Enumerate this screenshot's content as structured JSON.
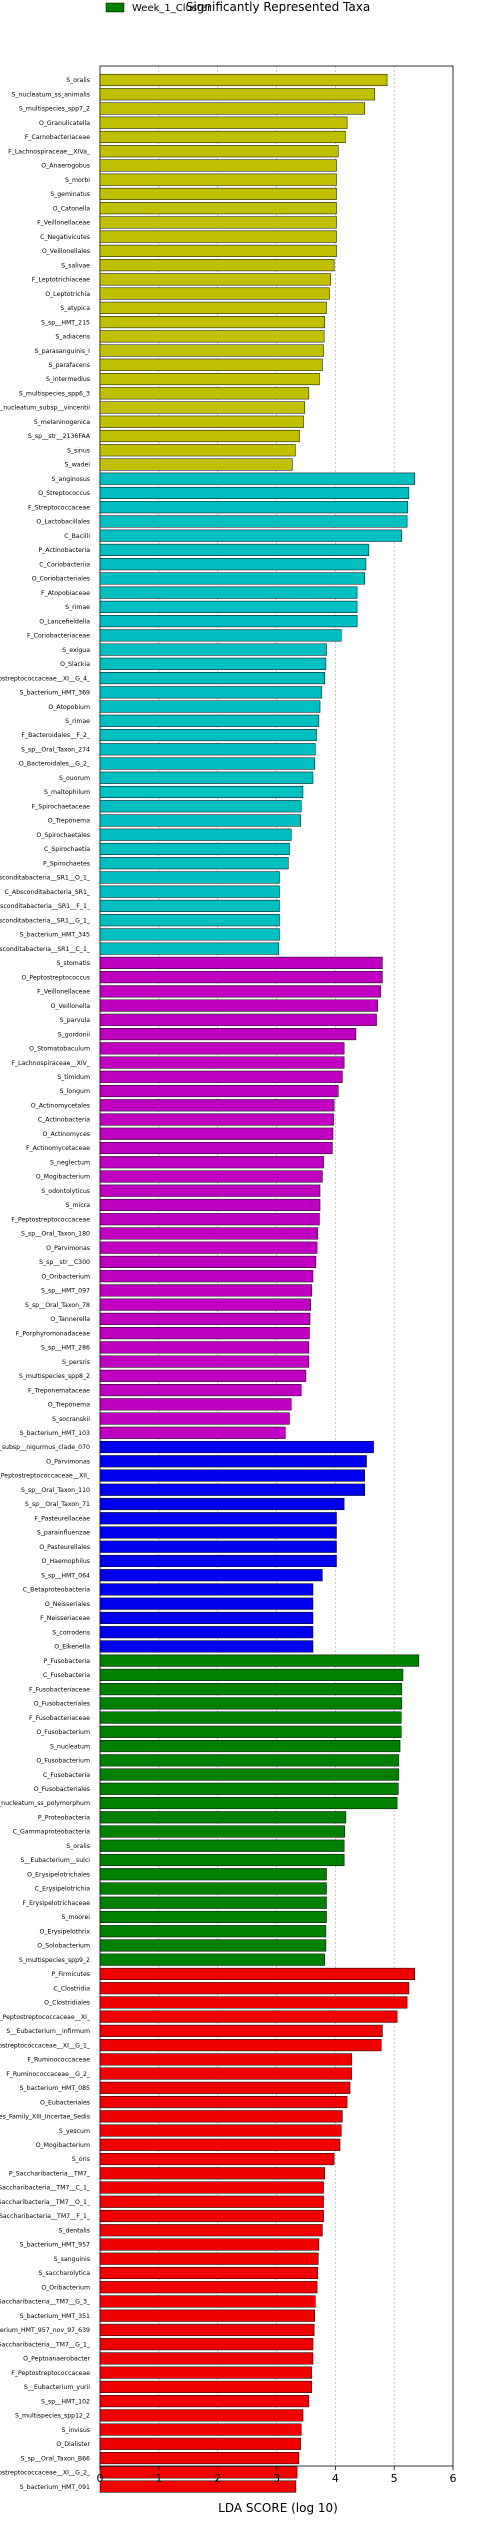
{
  "chart_data": {
    "type": "bar",
    "orientation": "horizontal",
    "title": "Significantly Represented Taxa",
    "xlabel": "LDA SCORE (log 10)",
    "xlim": [
      0,
      6
    ],
    "xticks": [
      "0",
      "1",
      "2",
      "3",
      "4",
      "5",
      "6"
    ],
    "grid": true,
    "legend_position": "top-left",
    "colors": {
      "olive": "#c0c000",
      "cyan": "#00bfc0",
      "magenta": "#c000c0",
      "blue": "#0000f0",
      "green": "#008000",
      "red": "#f00000",
      "grid": "#b0b0b0"
    },
    "legend": [
      {
        "label": "Week_1_Cluster",
        "color": "green"
      }
    ],
    "bars": [
      {
        "label": "S_oralis",
        "value": 4.88,
        "color": "olive"
      },
      {
        "label": "S_nucleatum_ss_animalis",
        "value": 4.67,
        "color": "olive"
      },
      {
        "label": "S_multispecies_spp7_2",
        "value": 4.5,
        "color": "olive"
      },
      {
        "label": "O_Granulicatella",
        "value": 4.2,
        "color": "olive"
      },
      {
        "label": "F_Carnobacteriaceae",
        "value": 4.17,
        "color": "olive"
      },
      {
        "label": "F_Lachnospiraceae__XIVa_",
        "value": 4.05,
        "color": "olive"
      },
      {
        "label": "O_Anaerogobus",
        "value": 4.02,
        "color": "olive"
      },
      {
        "label": "S_morbi",
        "value": 4.02,
        "color": "olive"
      },
      {
        "label": "S_geminatus",
        "value": 4.02,
        "color": "olive"
      },
      {
        "label": "O_Catonella",
        "value": 4.02,
        "color": "olive"
      },
      {
        "label": "F_Veillonellaceae",
        "value": 4.02,
        "color": "olive"
      },
      {
        "label": "C_Negativicutes",
        "value": 4.02,
        "color": "olive"
      },
      {
        "label": "O_Veillonellales",
        "value": 4.02,
        "color": "olive"
      },
      {
        "label": "S_salivae",
        "value": 3.98,
        "color": "olive"
      },
      {
        "label": "F_Leptotrichiaceae",
        "value": 3.92,
        "color": "olive"
      },
      {
        "label": "O_Leptotrichia",
        "value": 3.9,
        "color": "olive"
      },
      {
        "label": "S_atypica",
        "value": 3.85,
        "color": "olive"
      },
      {
        "label": "S_sp__HMT_215",
        "value": 3.82,
        "color": "olive"
      },
      {
        "label": "S_adiacens",
        "value": 3.81,
        "color": "olive"
      },
      {
        "label": "S_parasanguinis_I",
        "value": 3.8,
        "color": "olive"
      },
      {
        "label": "S_parafacens",
        "value": 3.78,
        "color": "olive"
      },
      {
        "label": "S_intermedius",
        "value": 3.73,
        "color": "olive"
      },
      {
        "label": "S_multispecies_spp6_3",
        "value": 3.55,
        "color": "olive"
      },
      {
        "label": "S_nucleatum_subsp__vincentii",
        "value": 3.48,
        "color": "olive"
      },
      {
        "label": "S_melaninogenica",
        "value": 3.46,
        "color": "olive"
      },
      {
        "label": "S_sp__str__2136FAA",
        "value": 3.39,
        "color": "olive"
      },
      {
        "label": "S_sinus",
        "value": 3.32,
        "color": "olive"
      },
      {
        "label": "S_wadei",
        "value": 3.27,
        "color": "olive"
      },
      {
        "label": "S_anginosus",
        "value": 5.35,
        "color": "cyan"
      },
      {
        "label": "O_Streptococcus",
        "value": 5.25,
        "color": "cyan"
      },
      {
        "label": "F_Streptococcaceae",
        "value": 5.23,
        "color": "cyan"
      },
      {
        "label": "O_Lactobacillales",
        "value": 5.22,
        "color": "cyan"
      },
      {
        "label": "C_Bacilli",
        "value": 5.13,
        "color": "cyan"
      },
      {
        "label": "P_Actinobacteria",
        "value": 4.57,
        "color": "cyan"
      },
      {
        "label": "C_Coriobacteriia",
        "value": 4.52,
        "color": "cyan"
      },
      {
        "label": "O_Coriobacteriales",
        "value": 4.5,
        "color": "cyan"
      },
      {
        "label": "F_Atopobiaceae",
        "value": 4.37,
        "color": "cyan"
      },
      {
        "label": "S_rimae",
        "value": 4.37,
        "color": "cyan"
      },
      {
        "label": "O_Lancefieldella",
        "value": 4.37,
        "color": "cyan"
      },
      {
        "label": "F_Coriobacteriaceae",
        "value": 4.1,
        "color": "cyan"
      },
      {
        "label": "S_exigua",
        "value": 3.85,
        "color": "cyan"
      },
      {
        "label": "O_Slackia",
        "value": 3.84,
        "color": "cyan"
      },
      {
        "label": "F_Peptostreptococcaceae__XI__G_4_",
        "value": 3.82,
        "color": "cyan"
      },
      {
        "label": "S_bacterium_HMT_369",
        "value": 3.77,
        "color": "cyan"
      },
      {
        "label": "O_Atopobium",
        "value": 3.74,
        "color": "cyan"
      },
      {
        "label": "S_rimae",
        "value": 3.72,
        "color": "cyan"
      },
      {
        "label": "F_Bacteroidales__F_2_",
        "value": 3.68,
        "color": "cyan"
      },
      {
        "label": "S_sp__Oral_Taxon_274",
        "value": 3.66,
        "color": "cyan"
      },
      {
        "label": "O_Bacteroidales__G_2_",
        "value": 3.65,
        "color": "cyan"
      },
      {
        "label": "S_ouorum",
        "value": 3.62,
        "color": "cyan"
      },
      {
        "label": "S_maltophilum",
        "value": 3.45,
        "color": "cyan"
      },
      {
        "label": "F_Spirochaetaceae",
        "value": 3.42,
        "color": "cyan"
      },
      {
        "label": "O_Treponema",
        "value": 3.41,
        "color": "cyan"
      },
      {
        "label": "O_Spirochaetales",
        "value": 3.25,
        "color": "cyan"
      },
      {
        "label": "C_Spirochaetia",
        "value": 3.22,
        "color": "cyan"
      },
      {
        "label": "P_Spirochaetes",
        "value": 3.2,
        "color": "cyan"
      },
      {
        "label": "O_Absconditabacteria__SR1__O_1_",
        "value": 3.05,
        "color": "cyan"
      },
      {
        "label": "C_Absconditabacteria_SR1_",
        "value": 3.05,
        "color": "cyan"
      },
      {
        "label": "P_Absconditabacteria__SR1__F_1_",
        "value": 3.05,
        "color": "cyan"
      },
      {
        "label": "O_Absconditabacteria__SR1__G_1_",
        "value": 3.05,
        "color": "cyan"
      },
      {
        "label": "S_bacterium_HMT_345",
        "value": 3.05,
        "color": "cyan"
      },
      {
        "label": "P_Absconditabacteria__SR1__C_1_",
        "value": 3.04,
        "color": "cyan"
      },
      {
        "label": "S_stomatis",
        "value": 4.8,
        "color": "magenta"
      },
      {
        "label": "O_Peptostreptococcus",
        "value": 4.8,
        "color": "magenta"
      },
      {
        "label": "F_Veillonellaceae",
        "value": 4.77,
        "color": "magenta"
      },
      {
        "label": "O_Veillonella",
        "value": 4.72,
        "color": "magenta"
      },
      {
        "label": "S_parvula",
        "value": 4.7,
        "color": "magenta"
      },
      {
        "label": "S_gordonii",
        "value": 4.35,
        "color": "magenta"
      },
      {
        "label": "O_Stomatobaculum",
        "value": 4.15,
        "color": "magenta"
      },
      {
        "label": "F_Lachnospiraceae__XIV_",
        "value": 4.15,
        "color": "magenta"
      },
      {
        "label": "S_timidum",
        "value": 4.12,
        "color": "magenta"
      },
      {
        "label": "S_longum",
        "value": 4.05,
        "color": "magenta"
      },
      {
        "label": "O_Actinomycetales",
        "value": 3.98,
        "color": "magenta"
      },
      {
        "label": "C_Actinobacteria",
        "value": 3.97,
        "color": "magenta"
      },
      {
        "label": "O_Actinomyces",
        "value": 3.96,
        "color": "magenta"
      },
      {
        "label": "F_Actinomycetaceae",
        "value": 3.95,
        "color": "magenta"
      },
      {
        "label": "S_neglectum",
        "value": 3.8,
        "color": "magenta"
      },
      {
        "label": "O_Mogibacterium",
        "value": 3.78,
        "color": "magenta"
      },
      {
        "label": "S_odontolyticus",
        "value": 3.74,
        "color": "magenta"
      },
      {
        "label": "S_micra",
        "value": 3.74,
        "color": "magenta"
      },
      {
        "label": "F_Peptostreptococcaceae",
        "value": 3.73,
        "color": "magenta"
      },
      {
        "label": "S_sp__Oral_Taxon_180",
        "value": 3.7,
        "color": "magenta"
      },
      {
        "label": "O_Parvimonas",
        "value": 3.69,
        "color": "magenta"
      },
      {
        "label": "S_sp__str__C300",
        "value": 3.67,
        "color": "magenta"
      },
      {
        "label": "O_Oribacterium",
        "value": 3.62,
        "color": "magenta"
      },
      {
        "label": "S_sp__HMT_097",
        "value": 3.6,
        "color": "magenta"
      },
      {
        "label": "S_sp__Oral_Taxon_78",
        "value": 3.58,
        "color": "magenta"
      },
      {
        "label": "O_Tannerella",
        "value": 3.57,
        "color": "magenta"
      },
      {
        "label": "F_Porphyromonadaceae",
        "value": 3.56,
        "color": "magenta"
      },
      {
        "label": "S_sp__HMT_286",
        "value": 3.55,
        "color": "magenta"
      },
      {
        "label": "S_persris",
        "value": 3.55,
        "color": "magenta"
      },
      {
        "label": "S_multispecies_spp8_2",
        "value": 3.5,
        "color": "magenta"
      },
      {
        "label": "F_Treponemataceae",
        "value": 3.42,
        "color": "magenta"
      },
      {
        "label": "O_Treponema",
        "value": 3.25,
        "color": "magenta"
      },
      {
        "label": "S_socranskii",
        "value": 3.22,
        "color": "magenta"
      },
      {
        "label": "S_bacterium_HMT_103",
        "value": 3.15,
        "color": "magenta"
      },
      {
        "label": "S_nucleatum_subsp__nigurmus_clade_070",
        "value": 4.65,
        "color": "blue"
      },
      {
        "label": "O_Parvimonas",
        "value": 4.53,
        "color": "blue"
      },
      {
        "label": "F_Peptostreptococcaceae__XII_",
        "value": 4.5,
        "color": "blue"
      },
      {
        "label": "S_sp__Oral_Taxon_110",
        "value": 4.5,
        "color": "blue"
      },
      {
        "label": "S_sp__Oral_Taxon_71",
        "value": 4.15,
        "color": "blue"
      },
      {
        "label": "F_Pasteurellaceae",
        "value": 4.02,
        "color": "blue"
      },
      {
        "label": "S_parainfluenzae",
        "value": 4.02,
        "color": "blue"
      },
      {
        "label": "O_Pasteurellales",
        "value": 4.02,
        "color": "blue"
      },
      {
        "label": "O_Haemophilus",
        "value": 4.02,
        "color": "blue"
      },
      {
        "label": "S_sp__HMT_064",
        "value": 3.78,
        "color": "blue"
      },
      {
        "label": "C_Betaproteobacteria",
        "value": 3.62,
        "color": "blue"
      },
      {
        "label": "O_Neisseriales",
        "value": 3.62,
        "color": "blue"
      },
      {
        "label": "F_Neisseriaceae",
        "value": 3.62,
        "color": "blue"
      },
      {
        "label": "S_corrodens",
        "value": 3.62,
        "color": "blue"
      },
      {
        "label": "O_Eikenella",
        "value": 3.62,
        "color": "blue"
      },
      {
        "label": "P_Fusobacteria",
        "value": 5.42,
        "color": "green"
      },
      {
        "label": "C_Fusobacteria",
        "value": 5.15,
        "color": "green"
      },
      {
        "label": "F_Fusobacteriaceae",
        "value": 5.13,
        "color": "green"
      },
      {
        "label": "O_Fusobacteriales",
        "value": 5.13,
        "color": "green"
      },
      {
        "label": "F_Fusobacteriaceae",
        "value": 5.12,
        "color": "green"
      },
      {
        "label": "O_Fusobacterium",
        "value": 5.12,
        "color": "green"
      },
      {
        "label": "S_nucleatum",
        "value": 5.1,
        "color": "green"
      },
      {
        "label": "O_Fusobacterium",
        "value": 5.08,
        "color": "green"
      },
      {
        "label": "C_Fusobacteria",
        "value": 5.08,
        "color": "green"
      },
      {
        "label": "O_Fusobacteriales",
        "value": 5.07,
        "color": "green"
      },
      {
        "label": "S_nucleatum_ss_polymorphum",
        "value": 5.05,
        "color": "green"
      },
      {
        "label": "P_Proteobacteria",
        "value": 4.18,
        "color": "green"
      },
      {
        "label": "C_Gammaproteobacteria",
        "value": 4.16,
        "color": "green"
      },
      {
        "label": "S_oralis",
        "value": 4.15,
        "color": "green"
      },
      {
        "label": "S__Eubacterium__sulci",
        "value": 4.15,
        "color": "green"
      },
      {
        "label": "O_Erysipelotrichales",
        "value": 3.85,
        "color": "green"
      },
      {
        "label": "C_Erysipelotrichia",
        "value": 3.85,
        "color": "green"
      },
      {
        "label": "F_Erysipelotrichaceae",
        "value": 3.85,
        "color": "green"
      },
      {
        "label": "S_moorei",
        "value": 3.85,
        "color": "green"
      },
      {
        "label": "O_Erysipelothrix",
        "value": 3.84,
        "color": "green"
      },
      {
        "label": "O_Solobacterium",
        "value": 3.84,
        "color": "green"
      },
      {
        "label": "S_multispecies_spp9_2",
        "value": 3.82,
        "color": "green"
      },
      {
        "label": "P_Firmicutes",
        "value": 5.35,
        "color": "red"
      },
      {
        "label": "C_Clostridia",
        "value": 5.25,
        "color": "red"
      },
      {
        "label": "O_Clostridiales",
        "value": 5.22,
        "color": "red"
      },
      {
        "label": "F_Peptostreptococcaceae__XI_",
        "value": 5.05,
        "color": "red"
      },
      {
        "label": "S__Eubacterium__infirmum",
        "value": 4.8,
        "color": "red"
      },
      {
        "label": "F_Peptostreptococcaceae__XI__G_1_",
        "value": 4.78,
        "color": "red"
      },
      {
        "label": "F_Ruminococcaceae",
        "value": 4.28,
        "color": "red"
      },
      {
        "label": "F_Ruminococcaceae__G_2_",
        "value": 4.28,
        "color": "red"
      },
      {
        "label": "S_bacterium_HMT_085",
        "value": 4.25,
        "color": "red"
      },
      {
        "label": "O_Eubacteriales",
        "value": 4.2,
        "color": "red"
      },
      {
        "label": "F_Clostridiales_Family_XIII_Incertae_Sedis",
        "value": 4.12,
        "color": "red"
      },
      {
        "label": "S_yescum",
        "value": 4.1,
        "color": "red"
      },
      {
        "label": "O_Mogibacterium",
        "value": 4.08,
        "color": "red"
      },
      {
        "label": "S_oris",
        "value": 3.98,
        "color": "red"
      },
      {
        "label": "P_Saccharibacteria__TM7_",
        "value": 3.82,
        "color": "red"
      },
      {
        "label": "C_Saccharibacteria__TM7__C_1_",
        "value": 3.8,
        "color": "red"
      },
      {
        "label": "O_Saccharibacteria__TM7__O_1_",
        "value": 3.8,
        "color": "red"
      },
      {
        "label": "F_Saccharibacteria__TM7__F_1_",
        "value": 3.8,
        "color": "red"
      },
      {
        "label": "S_dentalis",
        "value": 3.78,
        "color": "red"
      },
      {
        "label": "S_bacterium_HMT_957",
        "value": 3.72,
        "color": "red"
      },
      {
        "label": "S_sanguinis",
        "value": 3.71,
        "color": "red"
      },
      {
        "label": "S_saccharolytica",
        "value": 3.7,
        "color": "red"
      },
      {
        "label": "O_Oribacterium",
        "value": 3.69,
        "color": "red"
      },
      {
        "label": "F_Saccharibacteria__TM7__G_3_",
        "value": 3.66,
        "color": "red"
      },
      {
        "label": "S_bacterium_HMT_351",
        "value": 3.65,
        "color": "red"
      },
      {
        "label": "S_Saccharibacteria__TM7__bacterium_HMT_957_nov_97_639",
        "value": 3.64,
        "color": "red"
      },
      {
        "label": "F_Saccharibacteria__TM7__G_1_",
        "value": 3.62,
        "color": "red"
      },
      {
        "label": "O_Peptoanaerobacter",
        "value": 3.62,
        "color": "red"
      },
      {
        "label": "F_Peptostreptococcaceae",
        "value": 3.6,
        "color": "red"
      },
      {
        "label": "S__Eubacterium_yurii",
        "value": 3.6,
        "color": "red"
      },
      {
        "label": "S_sp__HMT_102",
        "value": 3.55,
        "color": "red"
      },
      {
        "label": "S_multispecies_spp12_2",
        "value": 3.45,
        "color": "red"
      },
      {
        "label": "S_invisus",
        "value": 3.42,
        "color": "red"
      },
      {
        "label": "O_Dialister",
        "value": 3.41,
        "color": "red"
      },
      {
        "label": "S_sp__Oral_Taxon_B66",
        "value": 3.38,
        "color": "red"
      },
      {
        "label": "F_Peptostreptococcaceae__XI__G_2_",
        "value": 3.35,
        "color": "red"
      },
      {
        "label": "S_bacterium_HMT_091",
        "value": 3.33,
        "color": "red"
      }
    ]
  }
}
